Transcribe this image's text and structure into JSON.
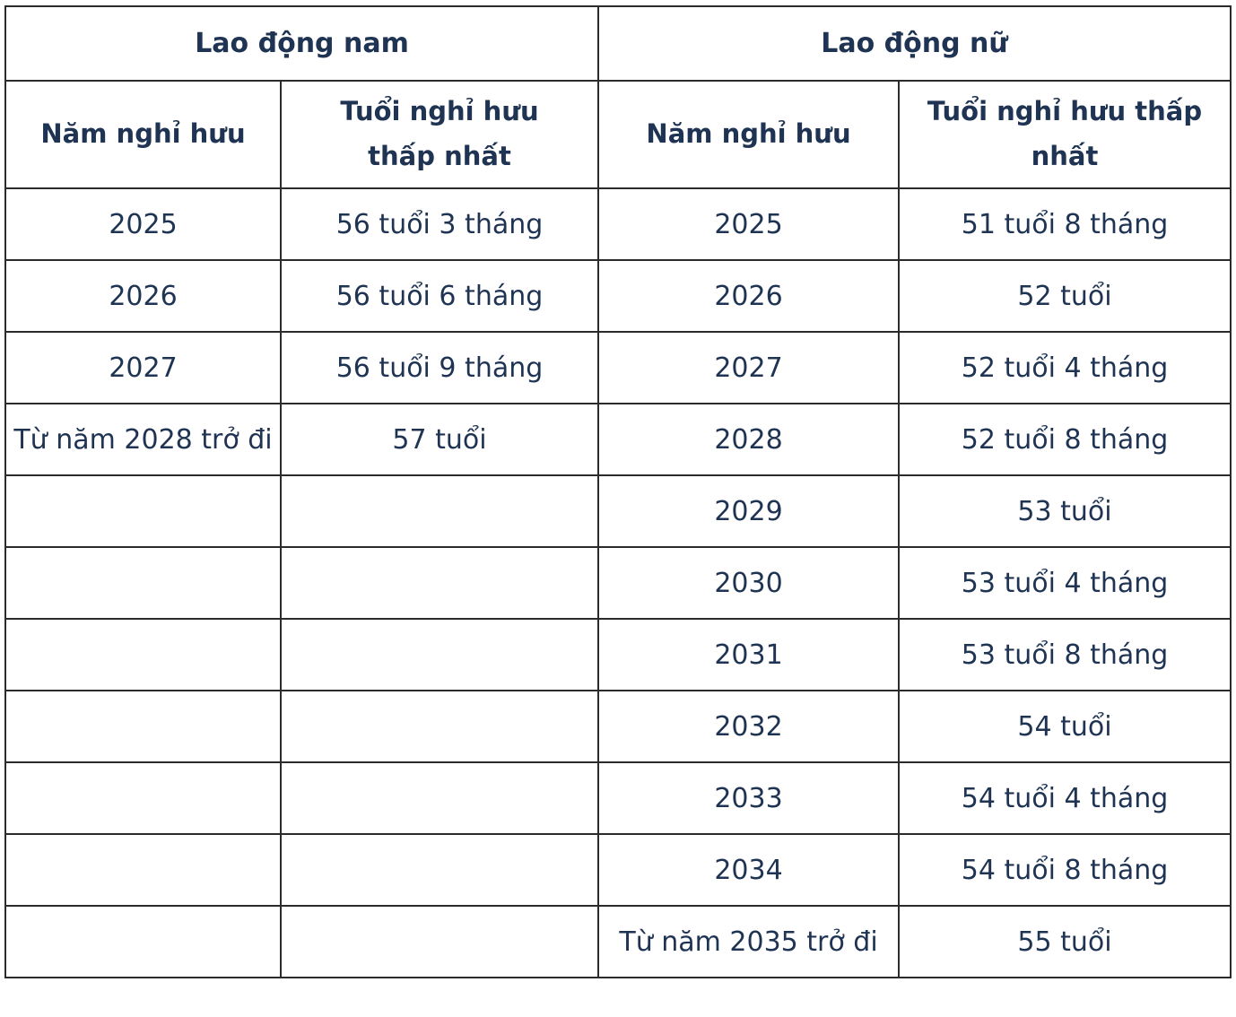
{
  "table": {
    "groups": [
      {
        "title": "Lao động nam",
        "col_year": "Năm nghỉ hưu",
        "col_age": "Tuổi nghỉ hưu thấp nhất"
      },
      {
        "title": "Lao động nữ",
        "col_year": "Năm nghỉ hưu",
        "col_age": "Tuổi nghỉ hưu thấp nhất"
      }
    ],
    "rows": [
      {
        "male_year": "2025",
        "male_age": "56 tuổi 3 tháng",
        "female_year": "2025",
        "female_age": "51 tuổi 8 tháng"
      },
      {
        "male_year": "2026",
        "male_age": "56 tuổi 6 tháng",
        "female_year": "2026",
        "female_age": "52 tuổi"
      },
      {
        "male_year": "2027",
        "male_age": "56 tuổi 9 tháng",
        "female_year": "2027",
        "female_age": "52 tuổi 4 tháng"
      },
      {
        "male_year": "Từ năm 2028 trở đi",
        "male_age": "57 tuổi",
        "female_year": "2028",
        "female_age": "52 tuổi 8 tháng"
      },
      {
        "male_year": "",
        "male_age": "",
        "female_year": "2029",
        "female_age": "53 tuổi"
      },
      {
        "male_year": "",
        "male_age": "",
        "female_year": "2030",
        "female_age": "53 tuổi 4 tháng"
      },
      {
        "male_year": "",
        "male_age": "",
        "female_year": "2031",
        "female_age": "53 tuổi 8 tháng"
      },
      {
        "male_year": "",
        "male_age": "",
        "female_year": "2032",
        "female_age": "54 tuổi"
      },
      {
        "male_year": "",
        "male_age": "",
        "female_year": "2033",
        "female_age": "54 tuổi 4 tháng"
      },
      {
        "male_year": "",
        "male_age": "",
        "female_year": "2034",
        "female_age": "54 tuổi 8 tháng"
      },
      {
        "male_year": "",
        "male_age": "",
        "female_year": "Từ năm 2035 trở đi",
        "female_age": "55 tuổi"
      }
    ],
    "colors": {
      "text": "#1f3353",
      "border": "#2b2b2b",
      "background": "#ffffff"
    }
  }
}
